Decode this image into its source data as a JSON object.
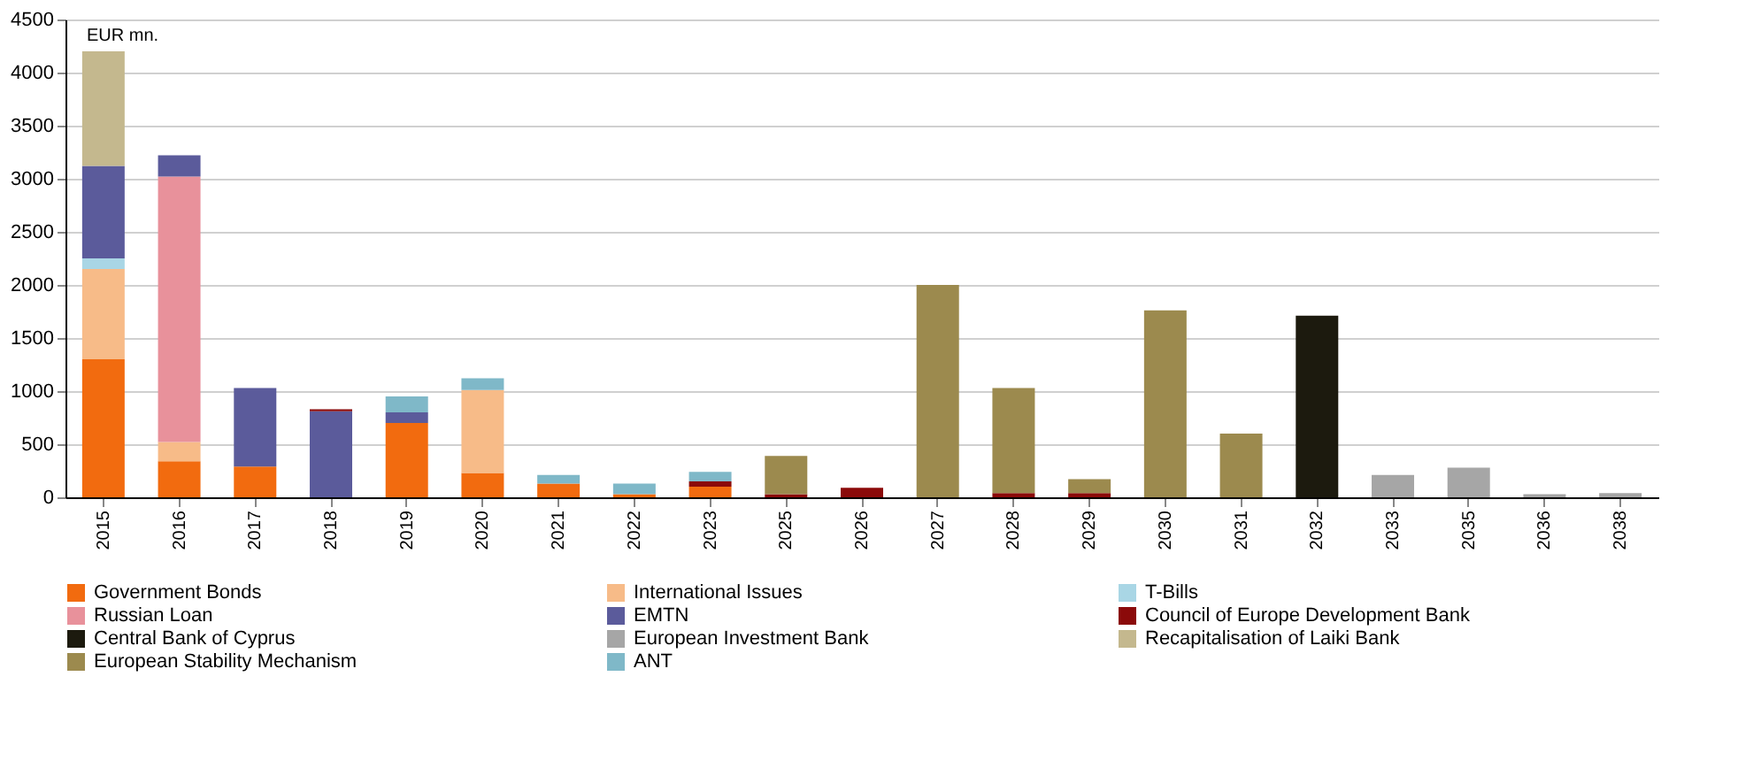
{
  "chart_data": {
    "type": "bar",
    "stacked": true,
    "categories": [
      "2015",
      "2016",
      "2017",
      "2018",
      "2019",
      "2020",
      "2021",
      "2022",
      "2023",
      "2025",
      "2026",
      "2027",
      "2028",
      "2029",
      "2030",
      "2031",
      "2032",
      "2033",
      "2035",
      "2036",
      "2038"
    ],
    "series": [
      {
        "name": "Government Bonds",
        "color": "#f26b0f",
        "values": [
          1300,
          340,
          290,
          null,
          700,
          230,
          130,
          30,
          100,
          null,
          null,
          null,
          null,
          null,
          null,
          null,
          null,
          null,
          null,
          null,
          null
        ]
      },
      {
        "name": "International Issues",
        "color": "#f7bb88",
        "values": [
          850,
          180,
          null,
          null,
          null,
          780,
          null,
          null,
          null,
          null,
          null,
          null,
          null,
          null,
          null,
          null,
          null,
          null,
          null,
          null,
          null
        ]
      },
      {
        "name": "T-Bills",
        "color": "#a9d6e5",
        "values": [
          100,
          null,
          null,
          null,
          null,
          null,
          null,
          null,
          null,
          null,
          null,
          null,
          null,
          null,
          null,
          null,
          null,
          null,
          null,
          null,
          null
        ]
      },
      {
        "name": "Russian Loan",
        "color": "#e8919b",
        "values": [
          null,
          2500,
          null,
          null,
          null,
          null,
          null,
          null,
          null,
          null,
          null,
          null,
          null,
          null,
          null,
          null,
          null,
          null,
          null,
          null,
          null
        ]
      },
      {
        "name": "EMTN",
        "color": "#5b5b9b",
        "values": [
          870,
          200,
          740,
          810,
          100,
          null,
          null,
          null,
          null,
          null,
          null,
          null,
          null,
          null,
          null,
          null,
          null,
          null,
          null,
          null,
          null
        ]
      },
      {
        "name": "Council of Europe Development Bank",
        "color": "#8b0a0a",
        "values": [
          null,
          null,
          null,
          20,
          null,
          null,
          null,
          null,
          50,
          30,
          90,
          null,
          40,
          40,
          null,
          null,
          null,
          null,
          null,
          null,
          null
        ]
      },
      {
        "name": "Central Bank of Cyprus",
        "color": "#1c1a0e",
        "values": [
          null,
          null,
          null,
          null,
          null,
          null,
          null,
          null,
          null,
          null,
          null,
          null,
          null,
          null,
          null,
          null,
          1710,
          null,
          null,
          null,
          null
        ]
      },
      {
        "name": "European Investment Bank",
        "color": "#a6a6a6",
        "values": [
          null,
          null,
          null,
          null,
          null,
          null,
          null,
          null,
          null,
          null,
          null,
          null,
          null,
          null,
          null,
          null,
          null,
          210,
          280,
          30,
          40
        ]
      },
      {
        "name": "Recapitalisation of Laiki Bank",
        "color": "#c4b88e",
        "values": [
          1080,
          null,
          null,
          null,
          null,
          null,
          null,
          null,
          null,
          null,
          null,
          null,
          null,
          null,
          null,
          null,
          null,
          null,
          null,
          null,
          null
        ]
      },
      {
        "name": "European Stability Mechanism",
        "color": "#9c8a4e",
        "values": [
          null,
          null,
          null,
          null,
          null,
          null,
          null,
          null,
          null,
          360,
          null,
          2000,
          990,
          130,
          1760,
          600,
          null,
          null,
          null,
          null,
          null
        ]
      },
      {
        "name": "ANT",
        "color": "#7fb8c8",
        "values": [
          null,
          null,
          null,
          null,
          150,
          110,
          80,
          100,
          90,
          null,
          null,
          null,
          null,
          null,
          null,
          null,
          null,
          null,
          null,
          null,
          null
        ]
      }
    ],
    "ylim": [
      0,
      4500
    ],
    "yticks": [
      0,
      500,
      1000,
      1500,
      2000,
      2500,
      3000,
      3500,
      4000,
      4500
    ],
    "grid": "y",
    "legend": "bottom",
    "annotations": [
      "EUR mn."
    ]
  }
}
